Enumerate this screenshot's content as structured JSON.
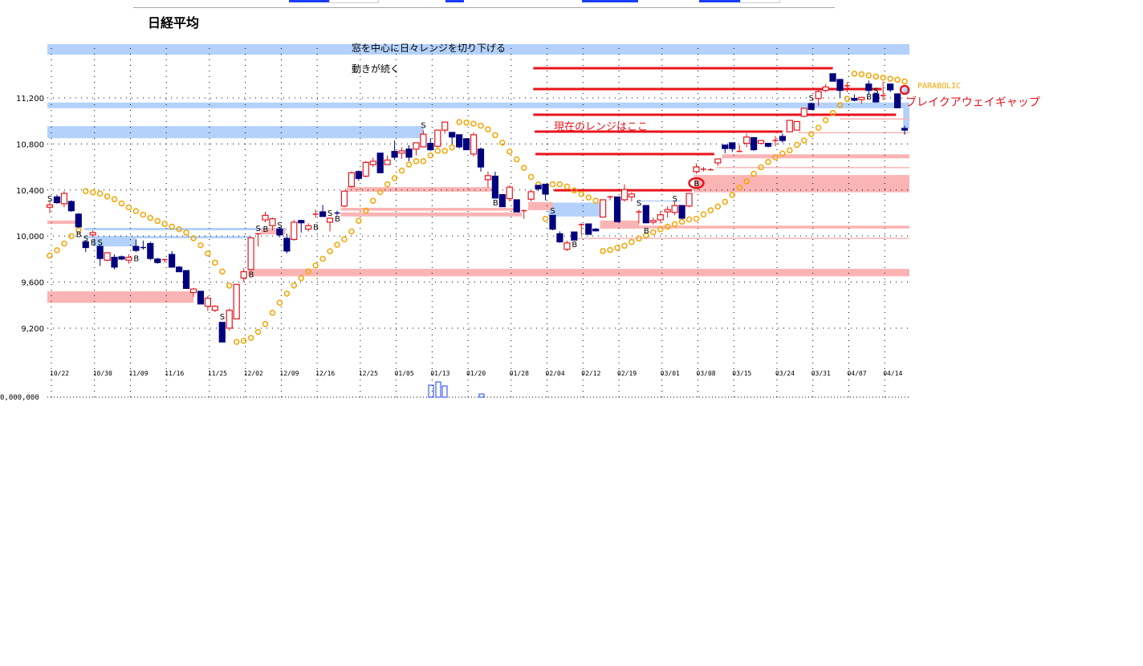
{
  "page": {
    "title": "日経平均"
  },
  "colors": {
    "up": "#e8141c",
    "down": "#00007e",
    "sar": "#f5a400",
    "blue_band": "#b3d1fb",
    "pink_band": "#fbb4b4",
    "red_line": "#e8141c",
    "annotation_red": "#e8141c"
  },
  "chart_data": {
    "type": "candlestick",
    "title": "日経平均",
    "ylim": [
      9000,
      11700
    ],
    "y_ticks": [
      11200,
      10800,
      10400,
      10000,
      9600,
      9200
    ],
    "y_tick_labels": [
      "11,200",
      "10,800",
      "10,400",
      "10,000",
      "9,600",
      "9,200"
    ],
    "x_ticks": [
      {
        "i": 0,
        "label": "10/22"
      },
      {
        "i": 6,
        "label": "10/30"
      },
      {
        "i": 11,
        "label": "11/09"
      },
      {
        "i": 16,
        "label": "11/16"
      },
      {
        "i": 22,
        "label": "11/25"
      },
      {
        "i": 27,
        "label": "12/02"
      },
      {
        "i": 32,
        "label": "12/09"
      },
      {
        "i": 37,
        "label": "12/16"
      },
      {
        "i": 43,
        "label": "12/25"
      },
      {
        "i": 48,
        "label": "01/05"
      },
      {
        "i": 53,
        "label": "01/13"
      },
      {
        "i": 58,
        "label": "01/20"
      },
      {
        "i": 64,
        "label": "01/28"
      },
      {
        "i": 69,
        "label": "02/04"
      },
      {
        "i": 74,
        "label": "02/12"
      },
      {
        "i": 79,
        "label": "02/19"
      },
      {
        "i": 85,
        "label": "03/01"
      },
      {
        "i": 90,
        "label": "03/08"
      },
      {
        "i": 95,
        "label": "03/15"
      },
      {
        "i": 101,
        "label": "03/24"
      },
      {
        "i": 106,
        "label": "03/31"
      },
      {
        "i": 111,
        "label": "04/07"
      },
      {
        "i": 116,
        "label": "04/14"
      }
    ],
    "grid": true,
    "ohlc": [
      [
        10250,
        10300,
        10200,
        10270
      ],
      [
        10340,
        10360,
        10280,
        10290
      ],
      [
        10280,
        10390,
        10250,
        10370
      ],
      [
        10300,
        10310,
        10210,
        10220
      ],
      [
        10190,
        10200,
        10070,
        10080
      ],
      [
        9950,
        9960,
        9860,
        9900
      ],
      [
        10010,
        10050,
        9990,
        10030
      ],
      [
        9910,
        9920,
        9740,
        9805
      ],
      [
        9790,
        9860,
        9780,
        9855
      ],
      [
        9815,
        9840,
        9710,
        9730
      ],
      [
        9820,
        9830,
        9790,
        9800
      ],
      [
        9790,
        9840,
        9760,
        9815
      ],
      [
        9910,
        9970,
        9860,
        9875
      ],
      [
        9900,
        9960,
        9880,
        9890
      ],
      [
        9935,
        9950,
        9790,
        9805
      ],
      [
        9800,
        9810,
        9760,
        9770
      ],
      [
        9790,
        9800,
        9770,
        9795
      ],
      [
        9840,
        9870,
        9730,
        9730
      ],
      [
        9730,
        9740,
        9690,
        9690
      ],
      [
        9700,
        9700,
        9545,
        9545
      ],
      [
        9510,
        9550,
        9470,
        9540
      ],
      [
        9520,
        9520,
        9410,
        9410
      ],
      [
        9390,
        9480,
        9350,
        9460
      ],
      [
        9355,
        9400,
        9340,
        9390
      ],
      [
        9250,
        9250,
        9080,
        9080
      ],
      [
        9200,
        9370,
        9180,
        9355
      ],
      [
        9280,
        9580,
        9280,
        9580
      ],
      [
        9635,
        9720,
        9600,
        9690
      ],
      [
        9710,
        9990,
        9700,
        9985
      ],
      [
        10020,
        10020,
        9910,
        10020
      ],
      [
        10140,
        10210,
        10120,
        10180
      ],
      [
        10090,
        10160,
        10050,
        10150
      ],
      [
        10060,
        10080,
        9990,
        10010
      ],
      [
        9980,
        10020,
        9850,
        9870
      ],
      [
        9970,
        10140,
        9960,
        10120
      ],
      [
        10135,
        10140,
        10030,
        10115
      ],
      [
        10060,
        10110,
        10040,
        10090
      ],
      [
        10190,
        10230,
        10160,
        10190
      ],
      [
        10210,
        10270,
        10170,
        10170
      ],
      [
        10120,
        10160,
        10040,
        10155
      ],
      [
        10200,
        10220,
        10180,
        10190
      ],
      [
        10260,
        10390,
        10250,
        10390
      ],
      [
        10430,
        10560,
        10420,
        10550
      ],
      [
        10560,
        10570,
        10480,
        10500
      ],
      [
        10520,
        10650,
        10510,
        10640
      ],
      [
        10620,
        10680,
        10600,
        10650
      ],
      [
        10720,
        10720,
        10550,
        10550
      ],
      [
        10620,
        10700,
        10620,
        10660
      ],
      [
        10735,
        10830,
        10660,
        10685
      ],
      [
        10720,
        10770,
        10670,
        10740
      ],
      [
        10755,
        10790,
        10650,
        10685
      ],
      [
        10755,
        10810,
        10700,
        10810
      ],
      [
        10775,
        10920,
        10770,
        10885
      ],
      [
        10805,
        10850,
        10740,
        10750
      ],
      [
        10780,
        10920,
        10770,
        10920
      ],
      [
        10920,
        10990,
        10890,
        10990
      ],
      [
        10900,
        10900,
        10800,
        10860
      ],
      [
        10880,
        10880,
        10760,
        10775
      ],
      [
        10845,
        10850,
        10750,
        10750
      ],
      [
        10712,
        10900,
        10690,
        10880
      ],
      [
        10755,
        10770,
        10560,
        10600
      ],
      [
        10490,
        10560,
        10420,
        10525
      ],
      [
        10520,
        10560,
        10330,
        10330
      ],
      [
        10360,
        10360,
        10255,
        10255
      ],
      [
        10325,
        10440,
        10300,
        10425
      ],
      [
        10315,
        10315,
        10210,
        10210
      ],
      [
        10220,
        10230,
        10150,
        10220
      ],
      [
        10320,
        10400,
        10300,
        10385
      ],
      [
        10440,
        10440,
        10390,
        10410
      ],
      [
        10450,
        10450,
        10310,
        10365
      ],
      [
        10180,
        10180,
        10050,
        10060
      ],
      [
        10020,
        10040,
        9940,
        9950
      ],
      [
        9885,
        9960,
        9870,
        9940
      ],
      [
        10035,
        10040,
        9965,
        9965
      ],
      [
        10100,
        10110,
        10010,
        10100
      ],
      [
        10105,
        10110,
        10015,
        10015
      ],
      [
        10060,
        10070,
        10040,
        10045
      ],
      [
        10165,
        10315,
        10160,
        10315
      ],
      [
        10340,
        10350,
        10310,
        10340
      ],
      [
        10340,
        10340,
        10125,
        10125
      ],
      [
        10315,
        10450,
        10300,
        10405
      ],
      [
        10340,
        10380,
        10300,
        10365
      ],
      [
        10210,
        10230,
        10110,
        10210
      ],
      [
        10265,
        10270,
        10115,
        10115
      ],
      [
        10120,
        10160,
        10100,
        10135
      ],
      [
        10140,
        10220,
        10110,
        10185
      ],
      [
        10210,
        10260,
        10160,
        10230
      ],
      [
        10205,
        10300,
        10180,
        10265
      ],
      [
        10265,
        10270,
        10150,
        10155
      ],
      [
        10260,
        10370,
        10250,
        10370
      ],
      [
        10560,
        10630,
        10540,
        10600
      ],
      [
        10580,
        10600,
        10560,
        10580
      ],
      [
        10575,
        10590,
        10570,
        10575
      ],
      [
        10635,
        10670,
        10610,
        10670
      ],
      [
        10790,
        10790,
        10720,
        10760
      ],
      [
        10810,
        10810,
        10730,
        10760
      ],
      [
        10735,
        10790,
        10735,
        10735
      ],
      [
        10805,
        10890,
        10770,
        10860
      ],
      [
        10855,
        10855,
        10740,
        10750
      ],
      [
        10805,
        10830,
        10805,
        10830
      ],
      [
        10805,
        10810,
        10770,
        10780
      ],
      [
        10830,
        10870,
        10780,
        10830
      ],
      [
        10865,
        10890,
        10810,
        10830
      ],
      [
        10905,
        11005,
        10905,
        11005
      ],
      [
        10920,
        10995,
        10920,
        10995
      ],
      [
        11040,
        11110,
        11030,
        11110
      ],
      [
        11150,
        11160,
        11100,
        11100
      ],
      [
        11195,
        11270,
        11130,
        11255
      ],
      [
        11265,
        11320,
        11250,
        11295
      ],
      [
        11410,
        11410,
        11345,
        11345
      ],
      [
        11360,
        11360,
        11200,
        11265
      ],
      [
        11305,
        11340,
        11250,
        11305
      ],
      [
        11195,
        11230,
        11170,
        11180
      ],
      [
        11185,
        11205,
        11150,
        11205
      ],
      [
        11320,
        11350,
        11230,
        11265
      ],
      [
        11235,
        11240,
        11160,
        11165
      ],
      [
        11220,
        11340,
        11180,
        11220
      ],
      [
        11320,
        11320,
        11250,
        11270
      ],
      [
        11235,
        11235,
        11110,
        11115
      ],
      [
        10935,
        10960,
        10880,
        10920
      ]
    ],
    "indicator": {
      "name": "PARABOLIC",
      "af_step": 0.02,
      "af_max": 0.2
    },
    "blue_zones": [
      [
        11576,
        11667,
        -0.4,
        119.7
      ],
      [
        11110,
        11160,
        -0.4,
        119.7
      ],
      [
        10850,
        10955,
        -0.4,
        52
      ],
      [
        10050,
        10071,
        4.8,
        33
      ],
      [
        9980,
        10000,
        4.8,
        28
      ],
      [
        9910,
        10000,
        6,
        12
      ],
      [
        10170,
        10290,
        69.4,
        76.6
      ],
      [
        10300,
        10310,
        81.7,
        87.8
      ],
      [
        11230,
        11285,
        118.8,
        119.7
      ],
      [
        10935,
        11110,
        118.8,
        119.7
      ]
    ],
    "pink_zones": [
      [
        10105,
        10135,
        -0.4,
        3.7
      ],
      [
        9420,
        9520,
        -0.4,
        20
      ],
      [
        9650,
        9715,
        27.6,
        119.7
      ],
      [
        10385,
        10425,
        41.3,
        61.5
      ],
      [
        10220,
        10245,
        40.5,
        65
      ],
      [
        10170,
        10205,
        40.5,
        65.7
      ],
      [
        10225,
        10295,
        66.6,
        70
      ],
      [
        10380,
        10530,
        89.7,
        119.7
      ],
      [
        10675,
        10710,
        93.6,
        119.7
      ],
      [
        10590,
        10600,
        92.8,
        119.7
      ],
      [
        10065,
        10090,
        76.6,
        119.7
      ],
      [
        10065,
        10135,
        76.6,
        82
      ],
      [
        9975,
        9985,
        73.5,
        119.7
      ],
      [
        10895,
        10903,
        104.2,
        119.7
      ],
      [
        11015,
        11022,
        110,
        119.7
      ],
      [
        10015,
        10065,
        29.4,
        32.8
      ]
    ],
    "red_lines": [
      [
        11458,
        67.3,
        109
      ],
      [
        11277,
        67.3,
        115.8
      ],
      [
        11054,
        67.3,
        117.8
      ],
      [
        10907,
        67.5,
        102
      ],
      [
        10712,
        67.6,
        92.5
      ],
      [
        10398,
        70.2,
        89.4
      ]
    ],
    "signals": [
      {
        "i": 0,
        "p": 10330,
        "t": "S"
      },
      {
        "i": 4,
        "p": 10020,
        "t": "B"
      },
      {
        "i": 5,
        "p": 9985,
        "t": "S"
      },
      {
        "i": 6,
        "p": 9950,
        "t": "B"
      },
      {
        "i": 7,
        "p": 9950,
        "t": "S"
      },
      {
        "i": 12,
        "p": 9810,
        "t": "B"
      },
      {
        "i": 24,
        "p": 9305,
        "t": "S"
      },
      {
        "i": 28,
        "p": 9670,
        "t": "B"
      },
      {
        "i": 29,
        "p": 10070,
        "t": "S"
      },
      {
        "i": 30,
        "p": 10065,
        "t": "B"
      },
      {
        "i": 32,
        "p": 10100,
        "t": "S"
      },
      {
        "i": 37,
        "p": 10080,
        "t": "B"
      },
      {
        "i": 39,
        "p": 10205,
        "t": "S"
      },
      {
        "i": 40,
        "p": 10155,
        "t": "B"
      },
      {
        "i": 52,
        "p": 10965,
        "t": "S"
      },
      {
        "i": 62,
        "p": 10295,
        "t": "B"
      },
      {
        "i": 70,
        "p": 10225,
        "t": "S"
      },
      {
        "i": 73,
        "p": 9930,
        "t": "B"
      },
      {
        "i": 82,
        "p": 10290,
        "t": "S"
      },
      {
        "i": 83,
        "p": 10050,
        "t": "B"
      },
      {
        "i": 87,
        "p": 10330,
        "t": "S"
      },
      {
        "i": 90,
        "p": 10460,
        "t": "B"
      },
      {
        "i": 106,
        "p": 11205,
        "t": "S"
      },
      {
        "i": 114,
        "p": 11215,
        "t": "B"
      },
      {
        "i": 115,
        "p": 11265,
        "t": "S"
      }
    ],
    "circles": [
      {
        "i": 90,
        "p": 10460
      },
      {
        "i": 119,
        "p": 11270
      }
    ],
    "annotations": [
      {
        "text": "窓を中心に日々レンジを切り下げる",
        "color": "black"
      },
      {
        "text": "動きが続く",
        "color": "black"
      },
      {
        "text": "現在のレンジはここ",
        "color": "red"
      },
      {
        "text": "ブレイクアウェイギャップ",
        "color": "red"
      }
    ],
    "volume_axis_label": "0,000,000"
  }
}
